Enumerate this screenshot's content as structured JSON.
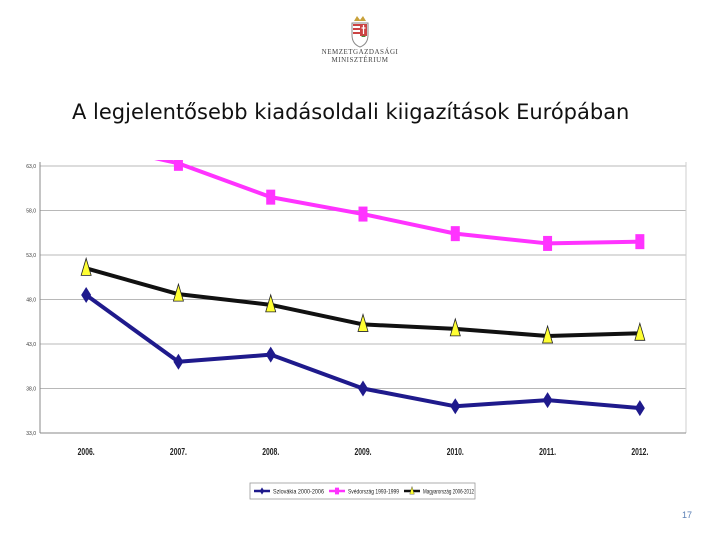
{
  "header": {
    "logo_line1": "NEMZETGAZDASÁGI",
    "logo_line2": "MINISZTÉRIUM",
    "title": "A legjelentősebb kiadásoldali kiigazítások Európában"
  },
  "chart_data": {
    "type": "line",
    "categories": [
      "2006.",
      "2007.",
      "2008.",
      "2009.",
      "2010.",
      "2011.",
      "2012."
    ],
    "yticks": [
      "33,0",
      "38,0",
      "43,0",
      "48,0",
      "53,0",
      "58,0",
      "63,0"
    ],
    "ylim": [
      33,
      63
    ],
    "grid": true,
    "legend_position": "bottom",
    "series": [
      {
        "name": "Szlovákia 2000-2006",
        "color": "#1f1a8c",
        "marker": "diamond",
        "values": [
          48.5,
          41.0,
          41.8,
          38.0,
          36.0,
          36.7,
          35.8
        ]
      },
      {
        "name": "Svédország 1993-1999",
        "color": "#ff33ff",
        "marker": "square",
        "values": [
          65.6,
          63.3,
          59.5,
          57.6,
          55.4,
          54.3,
          54.5
        ]
      },
      {
        "name": "Magyarország 2006-2012",
        "color": "#111111",
        "marker": "triangle",
        "values": [
          51.5,
          48.6,
          47.4,
          45.2,
          44.7,
          43.9,
          44.2
        ]
      }
    ]
  },
  "footer": {
    "page_number": "17"
  }
}
